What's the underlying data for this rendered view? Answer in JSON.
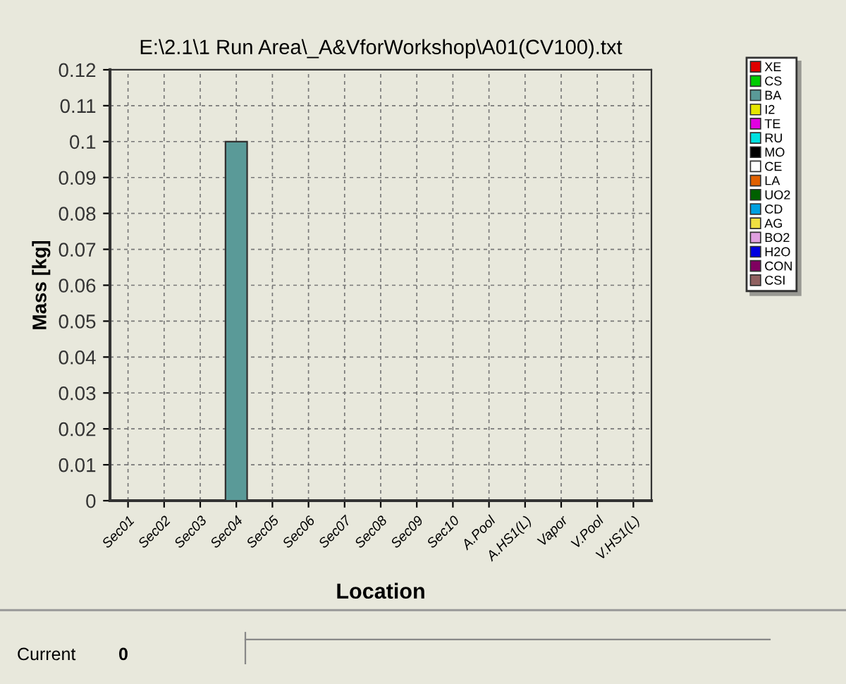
{
  "chart_data": {
    "type": "bar",
    "title": "E:\\2.1\\1 Run Area\\_A&VforWorkshop\\A01(CV100).txt",
    "xlabel": "Location",
    "ylabel": "Mass [kg]",
    "categories": [
      "Sec01",
      "Sec02",
      "Sec03",
      "Sec04",
      "Sec05",
      "Sec06",
      "Sec07",
      "Sec08",
      "Sec09",
      "Sec10",
      "A.Pool",
      "A.HS1(L)",
      "Vapor",
      "V.Pool",
      "V.HS1(L)"
    ],
    "series": [
      {
        "name": "XE",
        "color": "#e00000",
        "values": [
          null,
          null,
          null,
          null,
          null,
          null,
          null,
          null,
          null,
          null,
          null,
          null,
          null,
          null,
          null
        ]
      },
      {
        "name": "CS",
        "color": "#00cc00",
        "values": [
          null,
          null,
          null,
          null,
          null,
          null,
          null,
          null,
          null,
          null,
          null,
          null,
          null,
          null,
          null
        ]
      },
      {
        "name": "BA",
        "color": "#5a9a98",
        "values": [
          null,
          null,
          null,
          0.1,
          null,
          null,
          null,
          null,
          null,
          null,
          null,
          null,
          null,
          null,
          null
        ]
      },
      {
        "name": "I2",
        "color": "#e6e600",
        "values": [
          null,
          null,
          null,
          null,
          null,
          null,
          null,
          null,
          null,
          null,
          null,
          null,
          null,
          null,
          null
        ]
      },
      {
        "name": "TE",
        "color": "#e000e0",
        "values": [
          null,
          null,
          null,
          null,
          null,
          null,
          null,
          null,
          null,
          null,
          null,
          null,
          null,
          null,
          null
        ]
      },
      {
        "name": "RU",
        "color": "#00e0e0",
        "values": [
          null,
          null,
          null,
          null,
          null,
          null,
          null,
          null,
          null,
          null,
          null,
          null,
          null,
          null,
          null
        ]
      },
      {
        "name": "MO",
        "color": "#000000",
        "values": [
          null,
          null,
          null,
          null,
          null,
          null,
          null,
          null,
          null,
          null,
          null,
          null,
          null,
          null,
          null
        ]
      },
      {
        "name": "CE",
        "color": "#ffffff",
        "values": [
          null,
          null,
          null,
          null,
          null,
          null,
          null,
          null,
          null,
          null,
          null,
          null,
          null,
          null,
          null
        ]
      },
      {
        "name": "LA",
        "color": "#e06000",
        "values": [
          null,
          null,
          null,
          null,
          null,
          null,
          null,
          null,
          null,
          null,
          null,
          null,
          null,
          null,
          null
        ]
      },
      {
        "name": "UO2",
        "color": "#006000",
        "values": [
          null,
          null,
          null,
          null,
          null,
          null,
          null,
          null,
          null,
          null,
          null,
          null,
          null,
          null,
          null
        ]
      },
      {
        "name": "CD",
        "color": "#00a0e0",
        "values": [
          null,
          null,
          null,
          null,
          null,
          null,
          null,
          null,
          null,
          null,
          null,
          null,
          null,
          null,
          null
        ]
      },
      {
        "name": "AG",
        "color": "#f0e040",
        "values": [
          null,
          null,
          null,
          null,
          null,
          null,
          null,
          null,
          null,
          null,
          null,
          null,
          null,
          null,
          null
        ]
      },
      {
        "name": "BO2",
        "color": "#e0a0e0",
        "values": [
          null,
          null,
          null,
          null,
          null,
          null,
          null,
          null,
          null,
          null,
          null,
          null,
          null,
          null,
          null
        ]
      },
      {
        "name": "H2O",
        "color": "#0000e0",
        "values": [
          null,
          null,
          null,
          null,
          null,
          null,
          null,
          null,
          null,
          null,
          null,
          null,
          null,
          null,
          null
        ]
      },
      {
        "name": "CON",
        "color": "#800060",
        "values": [
          null,
          null,
          null,
          null,
          null,
          null,
          null,
          null,
          null,
          null,
          null,
          null,
          null,
          null,
          null
        ]
      },
      {
        "name": "CSI",
        "color": "#906060",
        "values": [
          null,
          null,
          null,
          null,
          null,
          null,
          null,
          null,
          null,
          null,
          null,
          null,
          null,
          null,
          null
        ]
      }
    ],
    "ylim": [
      0,
      0.12
    ],
    "yticks": [
      0,
      0.01,
      0.02,
      0.03,
      0.04,
      0.05,
      0.06,
      0.07,
      0.08,
      0.09,
      0.1,
      0.11,
      0.12
    ],
    "grid": true,
    "legend": "right",
    "annotations": [
      "Current",
      "0"
    ]
  }
}
